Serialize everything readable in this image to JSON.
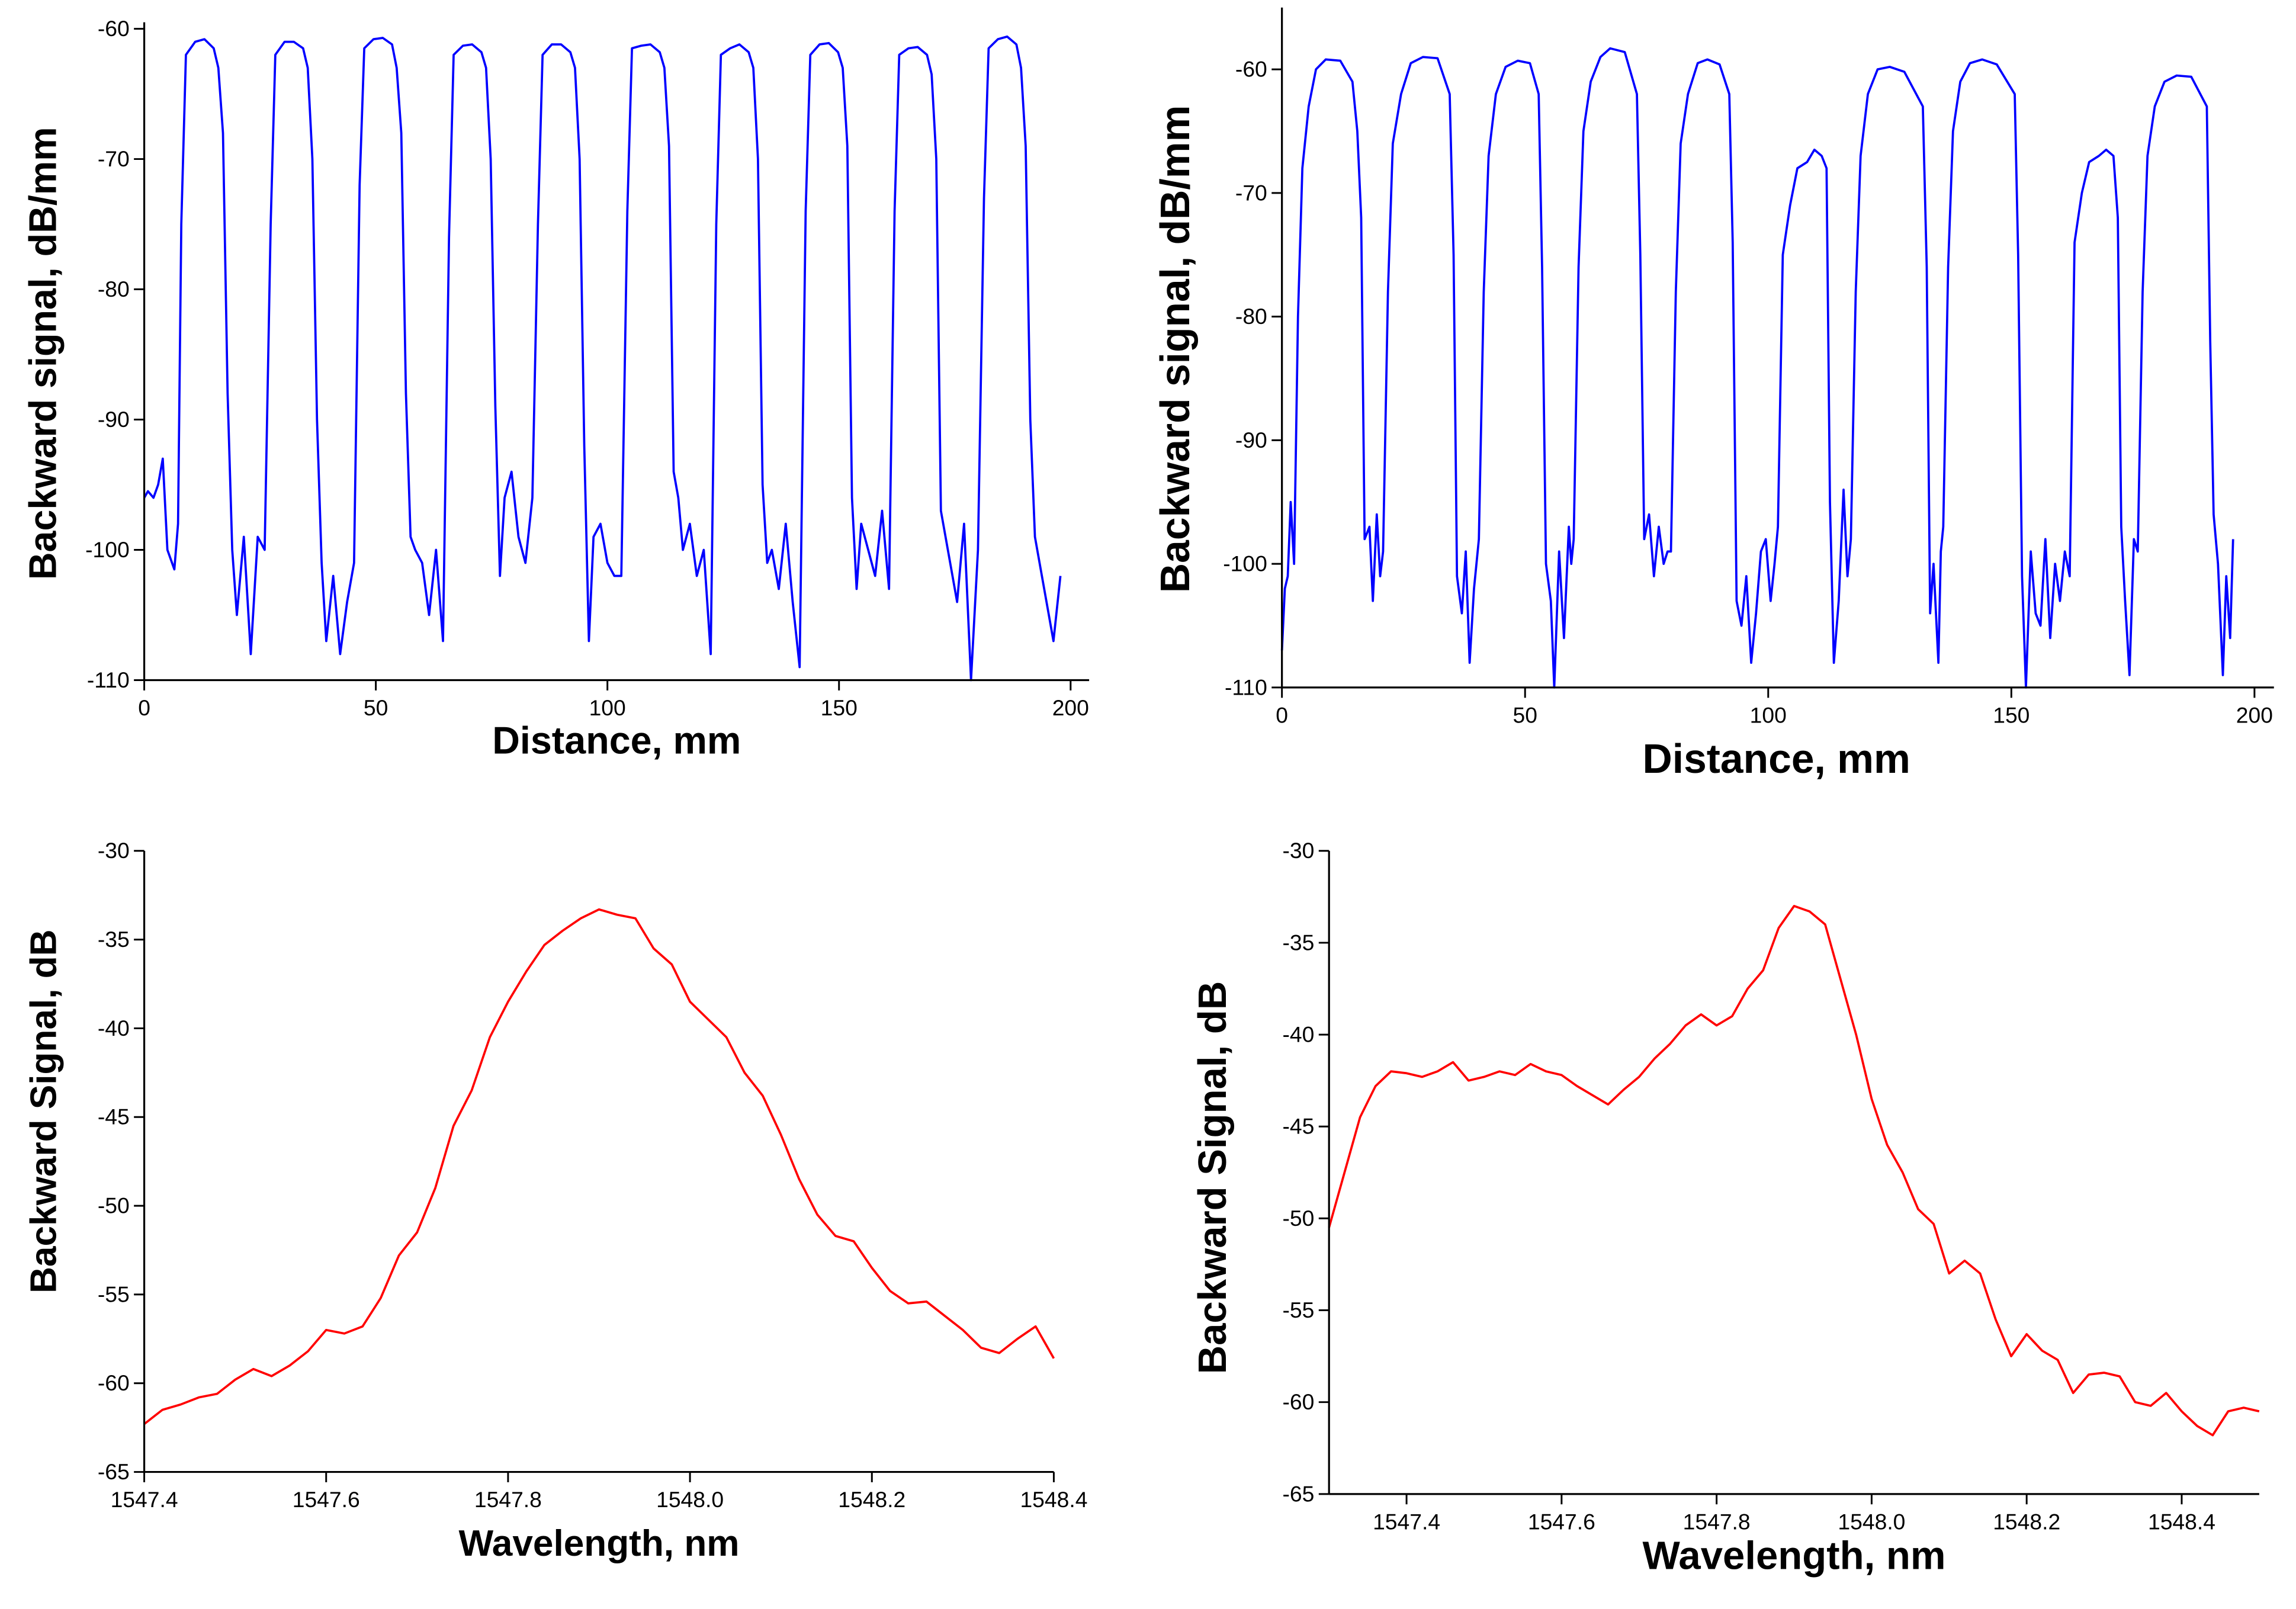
{
  "chart_data": [
    {
      "type": "line",
      "xlabel": "Distance, mm",
      "ylabel": "Backward signal, dB/mm",
      "color": "#0000ff",
      "xlim": [
        0,
        204
      ],
      "ylim": [
        -110,
        -59.5
      ],
      "xticks": [
        0,
        50,
        100,
        150,
        200
      ],
      "yticks": [
        -110,
        -100,
        -90,
        -80,
        -70,
        -60
      ],
      "x": [
        0,
        0.8,
        2,
        3,
        4,
        5,
        6.5,
        7.3,
        8,
        9,
        11,
        13,
        15,
        16,
        17,
        18,
        19,
        20,
        21.5,
        23,
        24.5,
        26,
        27.3,
        28.3,
        30.3,
        32.3,
        34.3,
        35.3,
        36.3,
        37.3,
        38.3,
        39.3,
        40.8,
        42.3,
        43.8,
        45.3,
        46.5,
        47.5,
        49.5,
        51.5,
        53.5,
        54.5,
        55.5,
        56.5,
        57.5,
        58.5,
        60,
        61.5,
        63,
        64.5,
        65.8,
        66.8,
        68.8,
        70.8,
        72.8,
        73.8,
        74.8,
        75.8,
        76.8,
        77.8,
        79.3,
        80.8,
        82.3,
        83.8,
        85,
        86,
        88,
        90,
        92,
        93,
        94,
        95,
        96,
        97,
        98.5,
        100,
        101.5,
        103,
        104.3,
        105.3,
        107.3,
        109.3,
        111.3,
        112.3,
        113.3,
        114.3,
        115.3,
        116.3,
        117.8,
        119.3,
        120.8,
        122.3,
        123.5,
        124.5,
        126.5,
        128.5,
        130.5,
        131.5,
        132.5,
        133.5,
        134.5,
        135.5,
        137,
        138.5,
        140,
        141.5,
        142.8,
        143.8,
        145.8,
        147.8,
        149.8,
        150.8,
        151.8,
        152.8,
        153.8,
        154.8,
        156.3,
        157.8,
        159.3,
        160.8,
        162,
        163,
        165,
        167,
        169,
        170,
        171,
        172,
        173,
        174,
        175.5,
        177,
        178.5,
        180,
        181.3,
        182.3,
        184.3,
        186.3,
        188.3,
        189.3,
        190.3,
        191.3,
        192.3,
        193.3,
        194.8,
        196.3,
        197.8
      ],
      "values": [
        -96,
        -95.5,
        -96,
        -95,
        -93,
        -100,
        -101.5,
        -98,
        -75,
        -62,
        -61,
        -60.8,
        -61.5,
        -63,
        -68,
        -88,
        -100,
        -105,
        -99,
        -108,
        -99,
        -100,
        -75,
        -62,
        -61,
        -61,
        -61.5,
        -63,
        -70,
        -90,
        -101,
        -107,
        -102,
        -108,
        -104,
        -101,
        -72,
        -61.5,
        -60.8,
        -60.7,
        -61.2,
        -63,
        -68,
        -88,
        -99,
        -100,
        -101,
        -105,
        -100,
        -107,
        -76,
        -62,
        -61.3,
        -61.2,
        -61.8,
        -63,
        -70,
        -89,
        -102,
        -96,
        -94,
        -99,
        -101,
        -96,
        -75,
        -62,
        -61.2,
        -61.2,
        -61.8,
        -63,
        -70,
        -92,
        -107,
        -99,
        -98,
        -101,
        -102,
        -102,
        -74,
        -61.5,
        -61.3,
        -61.2,
        -61.8,
        -63,
        -69,
        -94,
        -96,
        -100,
        -98,
        -102,
        -100,
        -108,
        -75,
        -62,
        -61.5,
        -61.2,
        -61.8,
        -63,
        -70,
        -95,
        -101,
        -100,
        -103,
        -98,
        -104,
        -109,
        -74,
        -62,
        -61.2,
        -61.1,
        -61.8,
        -63,
        -69,
        -96,
        -103,
        -98,
        -100,
        -102,
        -97,
        -103,
        -74,
        -62,
        -61.5,
        -61.4,
        -62,
        -63.5,
        -70,
        -97,
        -99,
        -101,
        -104,
        -98,
        -110,
        -100,
        -73,
        -61.5,
        -60.8,
        -60.6,
        -61.2,
        -63,
        -69,
        -90,
        -99,
        -101,
        -104,
        -107,
        -102
      ]
    },
    {
      "type": "line",
      "xlabel": "Distance, mm",
      "ylabel": "Backward signal, dB/mm",
      "color": "#0000ff",
      "xlim": [
        0,
        204
      ],
      "ylim": [
        -110,
        -55
      ],
      "xticks": [
        0,
        50,
        100,
        150,
        200
      ],
      "yticks": [
        -110,
        -100,
        -90,
        -80,
        -70,
        -60
      ],
      "x": [
        0,
        0.6,
        1.2,
        1.8,
        2.5,
        3.3,
        4.2,
        5.5,
        7,
        9,
        12,
        14.5,
        15.5,
        16.3,
        17,
        18,
        18.7,
        19.5,
        20.2,
        20.8,
        21.8,
        22.8,
        24.5,
        26.5,
        29,
        32,
        34.5,
        35.3,
        36,
        37,
        37.8,
        38.6,
        39.5,
        40,
        40.5,
        41.5,
        42.5,
        44,
        46,
        48.5,
        51,
        52.8,
        53.5,
        54.3,
        55.3,
        56,
        57,
        58,
        59,
        59.5,
        60,
        61,
        62,
        63.5,
        65.5,
        67.5,
        70.5,
        73,
        73.7,
        74.5,
        75.5,
        76.5,
        77.5,
        78.5,
        79.3,
        80,
        81,
        82,
        83.5,
        85.5,
        87.5,
        90,
        92,
        92.7,
        93.5,
        94.5,
        95.5,
        96.5,
        97.5,
        98.5,
        99.5,
        100.5,
        101.3,
        102,
        103,
        104.5,
        106,
        108,
        109.5,
        111,
        112,
        112.7,
        113.5,
        114.5,
        115.5,
        116.3,
        117,
        118,
        119,
        120.5,
        122.5,
        125,
        128,
        131.8,
        132.6,
        133.3,
        134,
        135,
        135.5,
        136,
        137,
        138,
        139.5,
        141.5,
        144,
        147,
        150.7,
        151.4,
        152.2,
        153,
        154,
        155,
        156,
        157,
        158,
        159,
        160,
        161,
        162,
        163,
        164.5,
        166,
        168,
        169.5,
        171,
        171.9,
        172.6,
        173.4,
        174.3,
        175.2,
        176,
        177,
        178,
        179.5,
        181.5,
        184,
        187,
        190.2,
        190.9,
        191.6,
        192.5,
        193.5,
        194.2,
        195,
        195.6
      ],
      "values": [
        -107,
        -102,
        -101,
        -95,
        -100,
        -80,
        -68,
        -63,
        -60,
        -59.2,
        -59.3,
        -61,
        -65,
        -72,
        -98,
        -97,
        -103,
        -96,
        -101,
        -99,
        -78,
        -66,
        -62,
        -59.5,
        -59,
        -59.1,
        -62,
        -75,
        -101,
        -104,
        -99,
        -108,
        -102,
        -100,
        -98,
        -78,
        -67,
        -62,
        -59.8,
        -59.3,
        -59.5,
        -62,
        -76,
        -100,
        -103,
        -110,
        -99,
        -106,
        -97,
        -100,
        -98,
        -76,
        -65,
        -61,
        -59,
        -58.3,
        -58.6,
        -62,
        -75,
        -98,
        -96,
        -101,
        -97,
        -100,
        -99,
        -99,
        -78,
        -66,
        -62,
        -59.5,
        -59.2,
        -59.6,
        -62,
        -74,
        -103,
        -105,
        -101,
        -108,
        -104,
        -99,
        -98,
        -103,
        -100,
        -97,
        -75,
        -71,
        -68,
        -67.5,
        -66.5,
        -67,
        -68,
        -95,
        -108,
        -103,
        -94,
        -101,
        -98,
        -78,
        -67,
        -62,
        -60,
        -59.8,
        -60.2,
        -63,
        -76,
        -104,
        -100,
        -108,
        -99,
        -97,
        -76,
        -65,
        -61,
        -59.5,
        -59.2,
        -59.6,
        -62,
        -75,
        -101,
        -110,
        -99,
        -104,
        -105,
        -98,
        -106,
        -100,
        -103,
        -99,
        -101,
        -74,
        -70,
        -67.5,
        -67,
        -66.5,
        -67,
        -72,
        -97,
        -103,
        -109,
        -98,
        -99,
        -78,
        -67,
        -63,
        -61,
        -60.5,
        -60.6,
        -63,
        -82,
        -96,
        -100,
        -109,
        -101,
        -106,
        -98
      ]
    },
    {
      "type": "line",
      "xlabel": "Wavelength, nm",
      "ylabel": "Backward Signal, dB",
      "color": "#ff0000",
      "xlim": [
        1547.4,
        1548.4
      ],
      "ylim": [
        -65,
        -30
      ],
      "xticks": [
        1547.4,
        1547.6,
        1547.8,
        {
          "value": 1548.0,
          "label": "1548.0"
        },
        1548.2,
        1548.4
      ],
      "yticks": [
        -65,
        -60,
        -55,
        -50,
        -45,
        -40,
        -35,
        -30
      ],
      "x": [
        1547.4,
        1547.42,
        1547.44,
        1547.46,
        1547.48,
        1547.5,
        1547.52,
        1547.54,
        1547.56,
        1547.58,
        1547.6,
        1547.62,
        1547.64,
        1547.66,
        1547.68,
        1547.7,
        1547.72,
        1547.74,
        1547.76,
        1547.78,
        1547.8,
        1547.82,
        1547.84,
        1547.86,
        1547.88,
        1547.9,
        1547.92,
        1547.94,
        1547.96,
        1547.98,
        1548.0,
        1548.02,
        1548.04,
        1548.06,
        1548.08,
        1548.1,
        1548.12,
        1548.14,
        1548.16,
        1548.18,
        1548.2,
        1548.22,
        1548.24,
        1548.26,
        1548.28,
        1548.3,
        1548.32,
        1548.34,
        1548.36,
        1548.38,
        1548.4
      ],
      "values": [
        -62.3,
        -61.5,
        -61.2,
        -60.8,
        -60.6,
        -59.8,
        -59.2,
        -59.6,
        -59.0,
        -58.2,
        -57.0,
        -57.2,
        -56.8,
        -55.2,
        -52.8,
        -51.5,
        -49.0,
        -45.5,
        -43.5,
        -40.5,
        -38.5,
        -36.8,
        -35.3,
        -34.5,
        -33.8,
        -33.3,
        -33.6,
        -33.8,
        -35.5,
        -36.4,
        -38.5,
        -39.5,
        -40.5,
        -42.5,
        -43.8,
        -46.0,
        -48.5,
        -50.5,
        -51.7,
        -52.0,
        -53.5,
        -54.8,
        -55.5,
        -55.4,
        -56.2,
        -57.0,
        -58.0,
        -58.3,
        -57.5,
        -56.8,
        -58.6
      ]
    },
    {
      "type": "line",
      "xlabel": "Wavelength, nm",
      "ylabel": "Backward Signal, dB",
      "color": "#ff0000",
      "xlim": [
        1547.3,
        1548.5
      ],
      "ylim": [
        -65,
        -30
      ],
      "xticks": [
        1547.4,
        1547.6,
        1547.8,
        {
          "value": 1548.0,
          "label": "1548.0"
        },
        1548.2,
        1548.4
      ],
      "yticks": [
        -65,
        -60,
        -55,
        -50,
        -45,
        -40,
        -35,
        -30
      ],
      "x": [
        1547.3,
        1547.32,
        1547.34,
        1547.36,
        1547.38,
        1547.4,
        1547.42,
        1547.44,
        1547.46,
        1547.48,
        1547.5,
        1547.52,
        1547.54,
        1547.56,
        1547.58,
        1547.6,
        1547.62,
        1547.64,
        1547.66,
        1547.68,
        1547.7,
        1547.72,
        1547.74,
        1547.76,
        1547.78,
        1547.8,
        1547.82,
        1547.84,
        1547.86,
        1547.88,
        1547.9,
        1547.92,
        1547.94,
        1547.96,
        1547.98,
        1548.0,
        1548.02,
        1548.04,
        1548.06,
        1548.08,
        1548.1,
        1548.12,
        1548.14,
        1548.16,
        1548.18,
        1548.2,
        1548.22,
        1548.24,
        1548.26,
        1548.28,
        1548.3,
        1548.32,
        1548.34,
        1548.36,
        1548.38,
        1548.4,
        1548.42,
        1548.44,
        1548.46,
        1548.48,
        1548.5
      ],
      "values": [
        -50.5,
        -47.5,
        -44.5,
        -42.8,
        -42.0,
        -42.1,
        -42.3,
        -42.0,
        -41.5,
        -42.5,
        -42.3,
        -42.0,
        -42.2,
        -41.6,
        -42.0,
        -42.2,
        -42.8,
        -43.3,
        -43.8,
        -43.0,
        -42.3,
        -41.3,
        -40.5,
        -39.5,
        -38.9,
        -39.5,
        -39.0,
        -37.5,
        -36.5,
        -34.2,
        -33.0,
        -33.3,
        -34.0,
        -37.0,
        -40.0,
        -43.5,
        -46.0,
        -47.5,
        -49.5,
        -50.3,
        -53.0,
        -52.3,
        -53.0,
        -55.5,
        -57.5,
        -56.3,
        -57.2,
        -57.7,
        -59.5,
        -58.5,
        -58.4,
        -58.6,
        -60.0,
        -60.2,
        -59.5,
        -60.5,
        -61.3,
        -61.8,
        -60.5,
        -60.3,
        -60.5
      ]
    }
  ]
}
